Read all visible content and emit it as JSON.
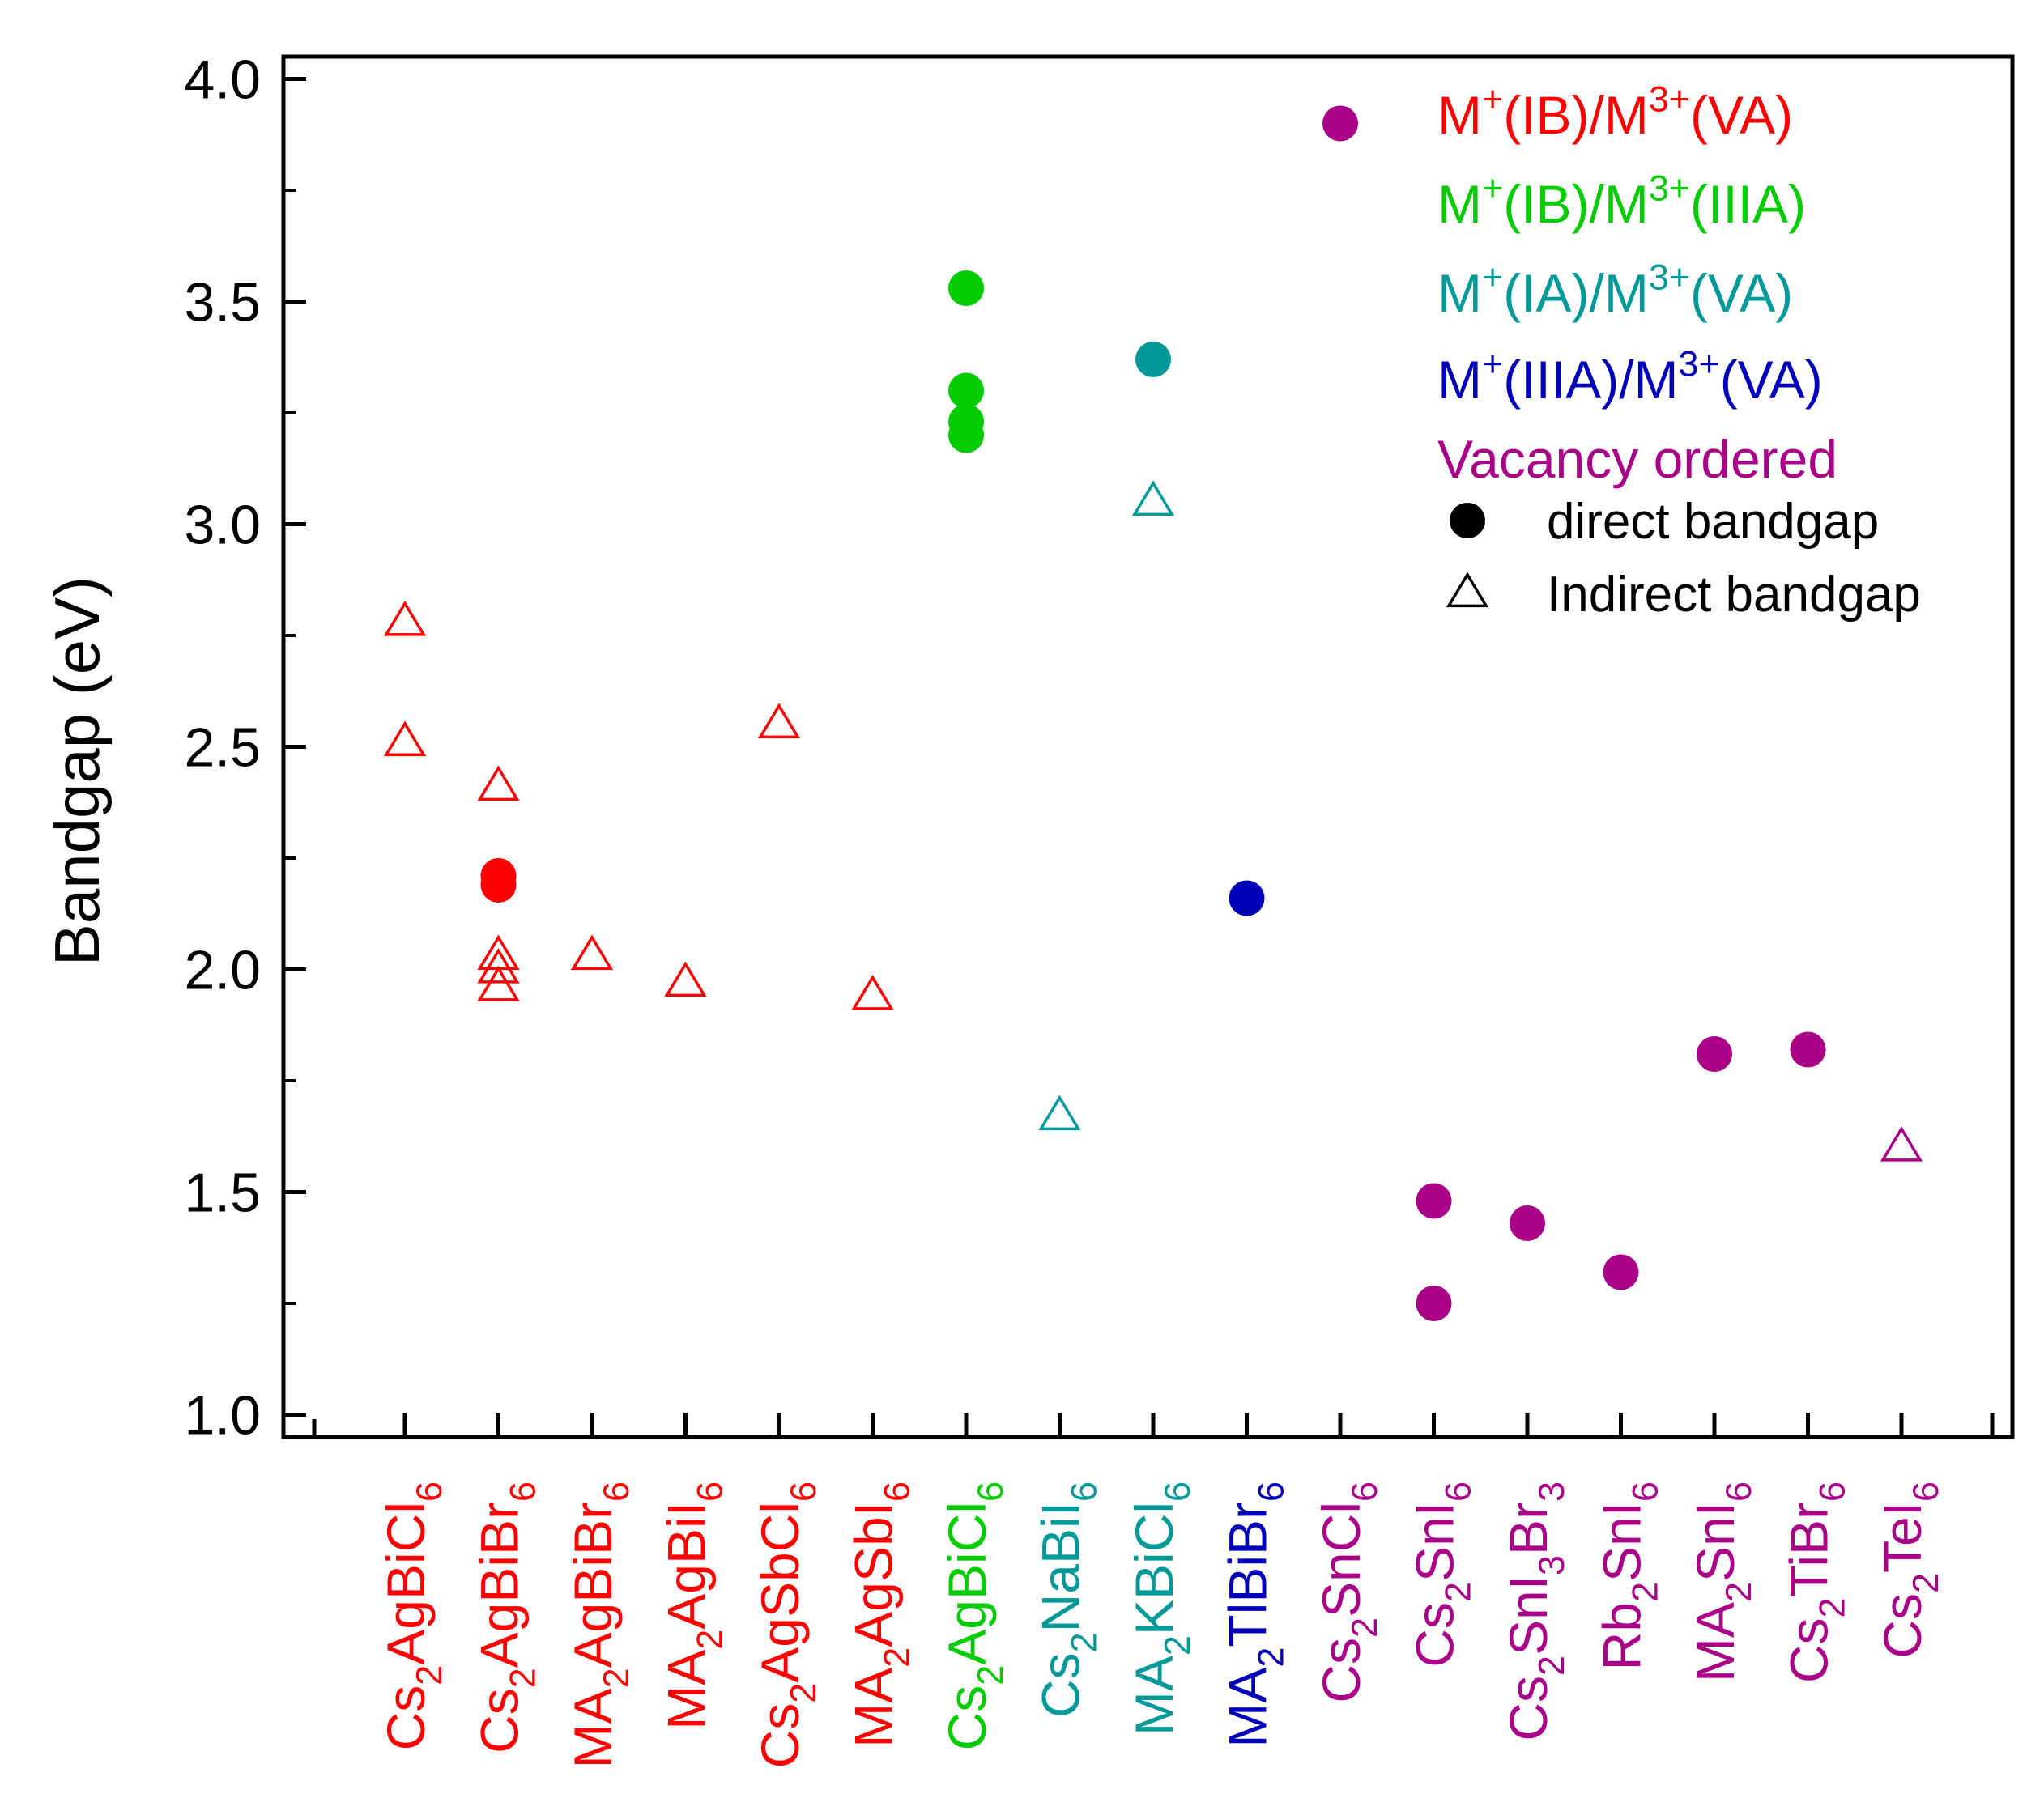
{
  "chart_data": {
    "type": "scatter",
    "title": "",
    "ylabel": "Bandgap (eV)",
    "xlabel": "",
    "ylim": [
      0.95,
      4.05
    ],
    "yticks": [
      "1.0",
      "1.5",
      "2.0",
      "2.5",
      "3.0",
      "3.5",
      "4.0"
    ],
    "grid": false,
    "legend_position": "top-right",
    "colors": {
      "IB_VA": "#ff0000",
      "IB_IIIA": "#00cc00",
      "IA_VA": "#009999",
      "IIIA_VA": "#0000bb",
      "vacancy": "#aa0088",
      "marker_key": "#000000"
    },
    "categories": [
      {
        "parts": [
          [
            "Cs",
            ""
          ],
          [
            "2",
            "sub"
          ],
          [
            "AgBiCl",
            ""
          ],
          [
            "6",
            "sub"
          ]
        ],
        "group": "IB_VA"
      },
      {
        "parts": [
          [
            "Cs",
            ""
          ],
          [
            "2",
            "sub"
          ],
          [
            "AgBiBr",
            ""
          ],
          [
            "6",
            "sub"
          ]
        ],
        "group": "IB_VA"
      },
      {
        "parts": [
          [
            "MA",
            ""
          ],
          [
            "2",
            "sub"
          ],
          [
            "AgBiBr",
            ""
          ],
          [
            "6",
            "sub"
          ]
        ],
        "group": "IB_VA"
      },
      {
        "parts": [
          [
            "MA",
            ""
          ],
          [
            "2",
            "sub"
          ],
          [
            "AgBiI",
            ""
          ],
          [
            "6",
            "sub"
          ]
        ],
        "group": "IB_VA"
      },
      {
        "parts": [
          [
            "Cs",
            ""
          ],
          [
            "2",
            "sub"
          ],
          [
            "AgSbCl",
            ""
          ],
          [
            "6",
            "sub"
          ]
        ],
        "group": "IB_VA"
      },
      {
        "parts": [
          [
            "MA",
            ""
          ],
          [
            "2",
            "sub"
          ],
          [
            "AgSbI",
            ""
          ],
          [
            "6",
            "sub"
          ]
        ],
        "group": "IB_VA"
      },
      {
        "parts": [
          [
            "Cs",
            ""
          ],
          [
            "2",
            "sub"
          ],
          [
            "AgBiCl",
            ""
          ],
          [
            "6",
            "sub"
          ]
        ],
        "group": "IB_IIIA"
      },
      {
        "parts": [
          [
            "Cs",
            ""
          ],
          [
            "2",
            "sub"
          ],
          [
            "NaBiI",
            ""
          ],
          [
            "6",
            "sub"
          ]
        ],
        "group": "IA_VA"
      },
      {
        "parts": [
          [
            "MA",
            ""
          ],
          [
            "2",
            "sub"
          ],
          [
            "KBiCl",
            ""
          ],
          [
            "6",
            "sub"
          ]
        ],
        "group": "IA_VA"
      },
      {
        "parts": [
          [
            "MA",
            ""
          ],
          [
            "2",
            "sub"
          ],
          [
            "TlBiBr",
            ""
          ],
          [
            "6",
            "sub"
          ]
        ],
        "group": "IIIA_VA"
      },
      {
        "parts": [
          [
            "Cs",
            ""
          ],
          [
            "2",
            "sub"
          ],
          [
            "SnCl",
            ""
          ],
          [
            "6",
            "sub"
          ]
        ],
        "group": "vacancy"
      },
      {
        "parts": [
          [
            "Cs",
            ""
          ],
          [
            "2",
            "sub"
          ],
          [
            "SnI",
            ""
          ],
          [
            "6",
            "sub"
          ]
        ],
        "group": "vacancy"
      },
      {
        "parts": [
          [
            "Cs",
            ""
          ],
          [
            "2",
            "sub"
          ],
          [
            "SnI",
            ""
          ],
          [
            "3",
            "sub"
          ],
          [
            "Br",
            ""
          ],
          [
            "3",
            "sub"
          ]
        ],
        "group": "vacancy"
      },
      {
        "parts": [
          [
            "Rb",
            ""
          ],
          [
            "2",
            "sub"
          ],
          [
            "SnI",
            ""
          ],
          [
            "6",
            "sub"
          ]
        ],
        "group": "vacancy"
      },
      {
        "parts": [
          [
            "MA",
            ""
          ],
          [
            "2",
            "sub"
          ],
          [
            "SnI",
            ""
          ],
          [
            "6",
            "sub"
          ]
        ],
        "group": "vacancy"
      },
      {
        "parts": [
          [
            "Cs",
            ""
          ],
          [
            "2",
            "sub"
          ],
          [
            "TiBr",
            ""
          ],
          [
            "6",
            "sub"
          ]
        ],
        "group": "vacancy"
      },
      {
        "parts": [
          [
            "Cs",
            ""
          ],
          [
            "2",
            "sub"
          ],
          [
            "TeI",
            ""
          ],
          [
            "6",
            "sub"
          ]
        ],
        "group": "vacancy"
      }
    ],
    "points": [
      {
        "x": 0,
        "y": 2.78,
        "kind": "indirect",
        "group": "IB_VA"
      },
      {
        "x": 0,
        "y": 2.51,
        "kind": "indirect",
        "group": "IB_VA"
      },
      {
        "x": 1,
        "y": 2.41,
        "kind": "indirect",
        "group": "IB_VA"
      },
      {
        "x": 1,
        "y": 2.21,
        "kind": "direct",
        "group": "IB_VA"
      },
      {
        "x": 1,
        "y": 2.19,
        "kind": "direct",
        "group": "IB_VA"
      },
      {
        "x": 1,
        "y": 2.03,
        "kind": "indirect",
        "group": "IB_VA"
      },
      {
        "x": 1,
        "y": 2.0,
        "kind": "indirect",
        "group": "IB_VA"
      },
      {
        "x": 1,
        "y": 1.96,
        "kind": "indirect",
        "group": "IB_VA"
      },
      {
        "x": 2,
        "y": 2.03,
        "kind": "indirect",
        "group": "IB_VA"
      },
      {
        "x": 3,
        "y": 1.97,
        "kind": "indirect",
        "group": "IB_VA"
      },
      {
        "x": 4,
        "y": 2.55,
        "kind": "indirect",
        "group": "IB_VA"
      },
      {
        "x": 5,
        "y": 1.94,
        "kind": "indirect",
        "group": "IB_VA"
      },
      {
        "x": 6,
        "y": 3.53,
        "kind": "direct",
        "group": "IB_IIIA"
      },
      {
        "x": 6,
        "y": 3.3,
        "kind": "direct",
        "group": "IB_IIIA"
      },
      {
        "x": 6,
        "y": 3.23,
        "kind": "direct",
        "group": "IB_IIIA"
      },
      {
        "x": 6,
        "y": 3.2,
        "kind": "direct",
        "group": "IB_IIIA"
      },
      {
        "x": 7,
        "y": 1.67,
        "kind": "indirect",
        "group": "IA_VA"
      },
      {
        "x": 8,
        "y": 3.37,
        "kind": "direct",
        "group": "IA_VA"
      },
      {
        "x": 8,
        "y": 3.05,
        "kind": "indirect",
        "group": "IA_VA"
      },
      {
        "x": 9,
        "y": 2.16,
        "kind": "direct",
        "group": "IIIA_VA"
      },
      {
        "x": 10,
        "y": 3.9,
        "kind": "direct",
        "group": "vacancy"
      },
      {
        "x": 11,
        "y": 1.48,
        "kind": "direct",
        "group": "vacancy"
      },
      {
        "x": 11,
        "y": 1.25,
        "kind": "direct",
        "group": "vacancy"
      },
      {
        "x": 12,
        "y": 1.43,
        "kind": "direct",
        "group": "vacancy"
      },
      {
        "x": 13,
        "y": 1.32,
        "kind": "direct",
        "group": "vacancy"
      },
      {
        "x": 14,
        "y": 1.81,
        "kind": "direct",
        "group": "vacancy"
      },
      {
        "x": 15,
        "y": 1.82,
        "kind": "direct",
        "group": "vacancy"
      },
      {
        "x": 16,
        "y": 1.6,
        "kind": "indirect",
        "group": "vacancy"
      }
    ],
    "legend": {
      "groups": [
        {
          "group": "IB_VA",
          "parts": [
            [
              "M",
              ""
            ],
            [
              "+",
              "sup"
            ],
            [
              "(IB)/M",
              ""
            ],
            [
              "3+",
              "sup"
            ],
            [
              "(VA)",
              ""
            ]
          ]
        },
        {
          "group": "IB_IIIA",
          "parts": [
            [
              "M",
              ""
            ],
            [
              "+",
              "sup"
            ],
            [
              "(IB)/M",
              ""
            ],
            [
              "3+",
              "sup"
            ],
            [
              "(IIIA)",
              ""
            ]
          ]
        },
        {
          "group": "IA_VA",
          "parts": [
            [
              "M",
              ""
            ],
            [
              "+",
              "sup"
            ],
            [
              "(IA)/M",
              ""
            ],
            [
              "3+",
              "sup"
            ],
            [
              "(VA)",
              ""
            ]
          ]
        },
        {
          "group": "IIIA_VA",
          "parts": [
            [
              "M",
              ""
            ],
            [
              "+",
              "sup"
            ],
            [
              "(IIIA)/M",
              ""
            ],
            [
              "3+",
              "sup"
            ],
            [
              "(VA)",
              ""
            ]
          ]
        },
        {
          "group": "vacancy",
          "parts": [
            [
              "Vacancy ordered",
              ""
            ]
          ]
        }
      ],
      "markers": [
        {
          "kind": "direct",
          "label": "direct bandgap"
        },
        {
          "kind": "indirect",
          "label": "Indirect bandgap"
        }
      ]
    }
  }
}
